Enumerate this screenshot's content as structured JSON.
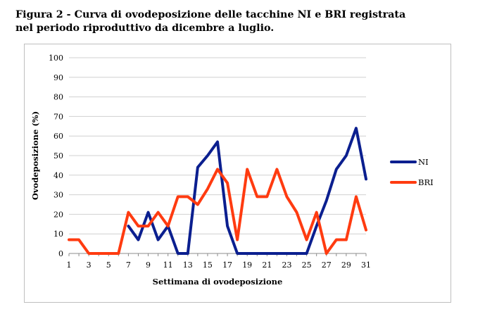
{
  "caption": {
    "line1": "Figura 2 - Curva di ovodeposizione delle tacchine NI e BRI registrata",
    "line2": "nel periodo riproduttivo da dicembre a luglio."
  },
  "chart_data": {
    "type": "line",
    "title": "",
    "xlabel": "Settimana di ovodeposizione",
    "ylabel": "Ovodeposizione (%)",
    "x": [
      1,
      2,
      3,
      4,
      5,
      6,
      7,
      8,
      9,
      10,
      11,
      12,
      13,
      14,
      15,
      16,
      17,
      18,
      19,
      20,
      21,
      22,
      23,
      24,
      25,
      26,
      27,
      28,
      29,
      30,
      31
    ],
    "x_tick_labels": [
      "1",
      "3",
      "5",
      "7",
      "9",
      "11",
      "13",
      "15",
      "17",
      "19",
      "21",
      "23",
      "25",
      "27",
      "29",
      "31"
    ],
    "ylim": [
      0,
      100
    ],
    "y_ticks": [
      0,
      10,
      20,
      30,
      40,
      50,
      60,
      70,
      80,
      90,
      100
    ],
    "grid": "horizontal",
    "legend_position": "right",
    "series": [
      {
        "name": "NI",
        "color": "#0b1f8f",
        "values": [
          null,
          null,
          null,
          null,
          null,
          null,
          14,
          7,
          21,
          7,
          14,
          0,
          0,
          44,
          50,
          57,
          14,
          0,
          0,
          0,
          0,
          0,
          0,
          0,
          0,
          14,
          27,
          43,
          50,
          64,
          38
        ]
      },
      {
        "name": "BRI",
        "color": "#ff3b10",
        "values": [
          7,
          7,
          0,
          0,
          0,
          0,
          21,
          14,
          14,
          21,
          14,
          29,
          29,
          25,
          33,
          43,
          36,
          7,
          43,
          29,
          29,
          43,
          29,
          21,
          7,
          21,
          0,
          7,
          7,
          29,
          12
        ]
      }
    ]
  }
}
